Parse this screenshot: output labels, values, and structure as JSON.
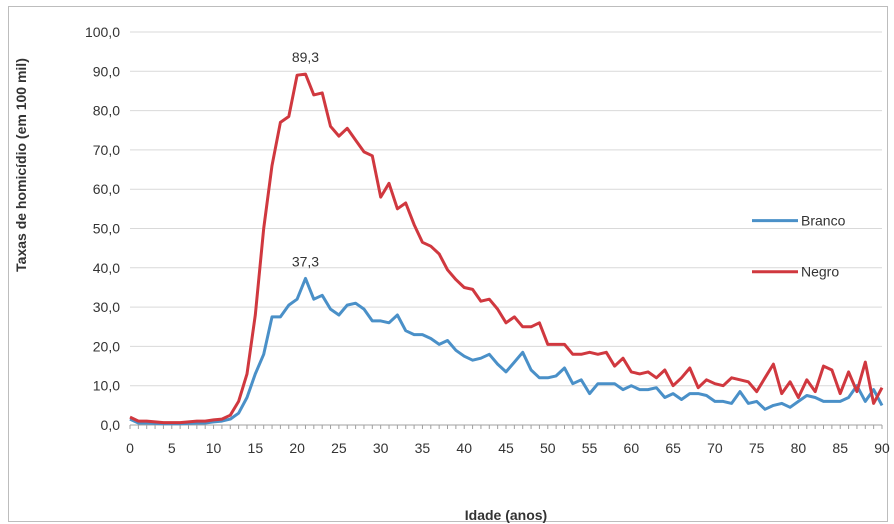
{
  "chart_data": {
    "type": "line",
    "title": "",
    "xlabel": "Idade (anos)",
    "ylabel": "Taxas de homicídio (em 100 mil)",
    "xlim": [
      0,
      90
    ],
    "ylim": [
      0,
      100
    ],
    "x_ticks": [
      "0",
      "5",
      "10",
      "15",
      "20",
      "25",
      "30",
      "35",
      "40",
      "45",
      "50",
      "55",
      "60",
      "65",
      "70",
      "75",
      "80",
      "85",
      "90"
    ],
    "y_ticks": [
      "0,0",
      "10,0",
      "20,0",
      "30,0",
      "40,0",
      "50,0",
      "60,0",
      "70,0",
      "80,0",
      "90,0",
      "100,0"
    ],
    "grid": "horizontal",
    "legend_position": "right",
    "series": [
      {
        "name": "Branco",
        "color": "#4a90c8",
        "x": [
          0,
          1,
          2,
          3,
          4,
          5,
          6,
          7,
          8,
          9,
          10,
          11,
          12,
          13,
          14,
          15,
          16,
          17,
          18,
          19,
          20,
          21,
          22,
          23,
          24,
          25,
          26,
          27,
          28,
          29,
          30,
          31,
          32,
          33,
          34,
          35,
          36,
          37,
          38,
          39,
          40,
          41,
          42,
          43,
          44,
          45,
          46,
          47,
          48,
          49,
          50,
          51,
          52,
          53,
          54,
          55,
          56,
          57,
          58,
          59,
          60,
          61,
          62,
          63,
          64,
          65,
          66,
          67,
          68,
          69,
          70,
          71,
          72,
          73,
          74,
          75,
          76,
          77,
          78,
          79,
          80,
          81,
          82,
          83,
          84,
          85,
          86,
          87,
          88,
          89,
          90
        ],
        "values": [
          1.5,
          0.5,
          0.5,
          0.4,
          0.3,
          0.3,
          0.3,
          0.4,
          0.5,
          0.5,
          0.8,
          1,
          1.5,
          3,
          7,
          13,
          18,
          27.5,
          27.5,
          30.5,
          32,
          37.3,
          32,
          33,
          29.5,
          28,
          30.5,
          31,
          29.5,
          26.5,
          26.5,
          26,
          28,
          24,
          23,
          23,
          22,
          20.5,
          21.5,
          19,
          17.5,
          16.5,
          17,
          18,
          15.5,
          13.5,
          16,
          18.5,
          14,
          12,
          12,
          12.5,
          14.5,
          10.5,
          11.5,
          8,
          10.5,
          10.5,
          10.5,
          9,
          10,
          9,
          9,
          9.5,
          7,
          8,
          6.5,
          8,
          8,
          7.5,
          6,
          6,
          5.5,
          8.5,
          5.5,
          6,
          4,
          5,
          5.5,
          4.5,
          6,
          7.5,
          7,
          6,
          6,
          6,
          7,
          10,
          6,
          9,
          5
        ]
      },
      {
        "name": "Negro",
        "color": "#d0383f",
        "x": [
          0,
          1,
          2,
          3,
          4,
          5,
          6,
          7,
          8,
          9,
          10,
          11,
          12,
          13,
          14,
          15,
          16,
          17,
          18,
          19,
          20,
          21,
          22,
          23,
          24,
          25,
          26,
          27,
          28,
          29,
          30,
          31,
          32,
          33,
          34,
          35,
          36,
          37,
          38,
          39,
          40,
          41,
          42,
          43,
          44,
          45,
          46,
          47,
          48,
          49,
          50,
          51,
          52,
          53,
          54,
          55,
          56,
          57,
          58,
          59,
          60,
          61,
          62,
          63,
          64,
          65,
          66,
          67,
          68,
          69,
          70,
          71,
          72,
          73,
          74,
          75,
          76,
          77,
          78,
          79,
          80,
          81,
          82,
          83,
          84,
          85,
          86,
          87,
          88,
          89,
          90
        ],
        "values": [
          2,
          1,
          1,
          0.8,
          0.6,
          0.6,
          0.6,
          0.8,
          1,
          1,
          1.3,
          1.5,
          2.5,
          6,
          13,
          28,
          50,
          66,
          77,
          78.5,
          89,
          89.3,
          84,
          84.5,
          76,
          73.5,
          75.5,
          72.5,
          69.5,
          68.5,
          58,
          61.5,
          55,
          56.5,
          51,
          46.5,
          45.5,
          43.5,
          39.5,
          37,
          35,
          34.5,
          31.5,
          32,
          29.5,
          26,
          27.5,
          25,
          25,
          26,
          20.5,
          20.5,
          20.5,
          18,
          18,
          18.5,
          18,
          18.5,
          15,
          17,
          13.5,
          13,
          13.5,
          12,
          14,
          10,
          12,
          14.5,
          9.5,
          11.5,
          10.5,
          10,
          12,
          11.5,
          11,
          8.5,
          12,
          15.5,
          8,
          11,
          7,
          11.5,
          8.5,
          15,
          14,
          8,
          13.5,
          8.5,
          16,
          5.5,
          9.5
        ]
      }
    ],
    "annotations": [
      {
        "text": "89,3",
        "x": 21,
        "y": 89.3,
        "series": "Negro"
      },
      {
        "text": "37,3",
        "x": 21,
        "y": 37.3,
        "series": "Branco"
      }
    ]
  }
}
